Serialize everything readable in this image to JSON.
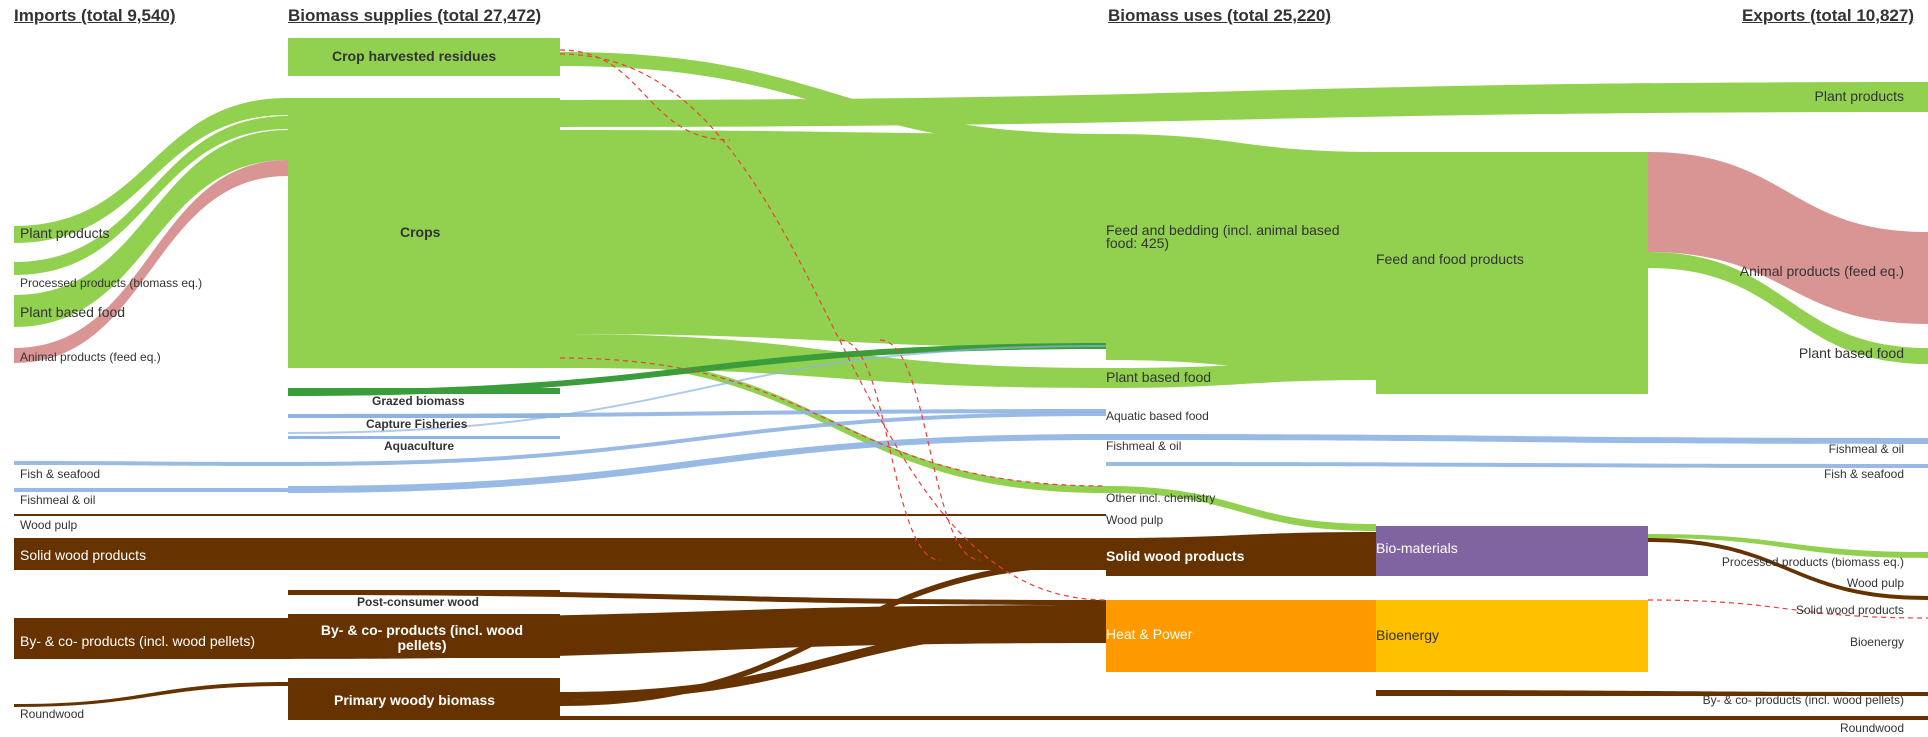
{
  "headers": {
    "imports": "Imports (total 9,540)",
    "supplies": "Biomass supplies (total 27,472)",
    "uses": "Biomass uses (total 25,220)",
    "exports": "Exports (total 10,827)"
  },
  "colors": {
    "agri": "#92d050",
    "grazed": "#3a9c3a",
    "animal": "#d99594",
    "fish": "#8db3e2",
    "wood": "#663300",
    "biomaterials": "#8064a2",
    "heat_power": "#ff9900",
    "bioenergy": "#ffc000",
    "dashed": "#e8403a"
  },
  "import_labels": {
    "plant_products": "Plant products",
    "processed_products": "Processed products (biomass eq.)",
    "plant_based_food": "Plant based food",
    "animal_products": "Animal products (feed eq.)",
    "fish_seafood": "Fish & seafood",
    "fishmeal_oil": "Fishmeal & oil",
    "wood_pulp": "Wood pulp",
    "solid_wood": "Solid wood products",
    "by_co_products": "By- & co- products (incl. wood pellets)",
    "roundwood": "Roundwood"
  },
  "supply_labels": {
    "crop_residues": "Crop harvested residues",
    "crops": "Crops",
    "grazed": "Grazed biomass",
    "capture_fisheries": "Capture Fisheries",
    "aquaculture": "Aquaculture",
    "post_consumer_wood": "Post-consumer wood",
    "by_co_products": "By- & co- products (incl. wood pellets)",
    "primary_woody": "Primary woody biomass"
  },
  "use_labels": {
    "feed_bedding": "Feed and bedding (incl. animal based food: 425)",
    "plant_based_food": "Plant based food",
    "aquatic_food": "Aquatic based food",
    "fishmeal_oil": "Fishmeal & oil",
    "other_chemistry": "Other incl. chemistry",
    "wood_pulp": "Wood pulp",
    "solid_wood": "Solid wood products",
    "heat_power": "Heat & Power"
  },
  "product_labels": {
    "feed_food": "Feed and food products",
    "bio_materials": "Bio-materials",
    "bioenergy": "Bioenergy"
  },
  "export_labels": {
    "plant_products": "Plant products",
    "animal_products": "Animal products (feed eq.)",
    "plant_based_food": "Plant based food",
    "fishmeal_oil": "Fishmeal & oil",
    "fish_seafood": "Fish & seafood",
    "processed_products": "Processed products (biomass eq.)",
    "wood_pulp": "Wood pulp",
    "solid_wood": "Solid wood products",
    "bioenergy": "Bioenergy",
    "by_co_products": "By- & co- products (incl. wood pellets)",
    "roundwood": "Roundwood"
  }
}
